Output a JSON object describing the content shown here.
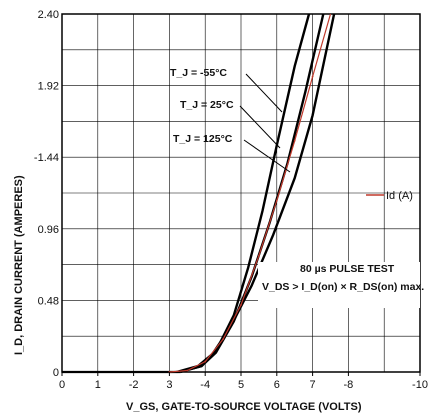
{
  "chart_data": {
    "type": "line",
    "xlabel": "V_GS, GATE-TO-SOURCE VOLTAGE (VOLTS)",
    "ylabel": "I_D, DRAIN CURRENT (AMPERES)",
    "xlim": [
      0,
      10
    ],
    "ylim": [
      0,
      2.4
    ],
    "grid": true,
    "legend_position": "right",
    "x_ticks": [
      0,
      1,
      2,
      3,
      4,
      5,
      6,
      7,
      8,
      10
    ],
    "x_tick_labels": [
      "0",
      "1",
      "-2",
      "3",
      "-4",
      "5",
      "6",
      "7",
      "-8",
      "-10"
    ],
    "y_ticks": [
      0,
      0.48,
      0.96,
      1.44,
      1.92,
      2.4
    ],
    "y_tick_labels": [
      "0",
      "0.48",
      "0.96",
      "-1.44",
      "1.92",
      "2.40"
    ],
    "series": [
      {
        "name": "Id (A)",
        "color": "#c0392b",
        "x": [
          3.0,
          3.5,
          4.0,
          4.5,
          5.0,
          5.5,
          6.0,
          6.5,
          7.0,
          7.5
        ],
        "y": [
          0.0,
          0.01,
          0.07,
          0.22,
          0.45,
          0.78,
          1.15,
          1.55,
          1.98,
          2.42
        ]
      }
    ],
    "temperature_curves": [
      {
        "label": "T_J = -55°C",
        "x": [
          3.3,
          3.9,
          4.3,
          4.8,
          5.2,
          5.6,
          6.0,
          6.5,
          6.9
        ],
        "y": [
          0.0,
          0.04,
          0.14,
          0.38,
          0.7,
          1.08,
          1.52,
          2.05,
          2.42
        ]
      },
      {
        "label": "T_J = 25°C",
        "x": [
          3.3,
          3.9,
          4.3,
          4.8,
          5.3,
          5.8,
          6.3,
          6.8,
          7.3
        ],
        "y": [
          0.0,
          0.04,
          0.13,
          0.34,
          0.64,
          1.0,
          1.4,
          1.88,
          2.42
        ]
      },
      {
        "label": "T_J = 125°C",
        "x": [
          3.2,
          3.8,
          4.2,
          4.7,
          5.3,
          5.9,
          6.5,
          7.0,
          7.6
        ],
        "y": [
          0.0,
          0.04,
          0.12,
          0.3,
          0.58,
          0.92,
          1.3,
          1.72,
          2.42
        ]
      }
    ],
    "annotations": [
      "80 µs PULSE TEST",
      "V_DS > I_D(on) × R_DS(on) max."
    ]
  }
}
